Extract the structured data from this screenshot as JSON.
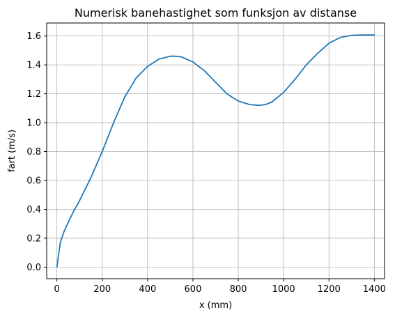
{
  "chart_data": {
    "type": "line",
    "title": "Numerisk banehastighet som funksjon av distanse",
    "xlabel": "x (mm)",
    "ylabel": "fart (m/s)",
    "xlim": [
      -45,
      1445
    ],
    "ylim": [
      -0.08,
      1.69
    ],
    "xticks": [
      0,
      200,
      400,
      600,
      800,
      1000,
      1200,
      1400
    ],
    "yticks": [
      0.0,
      0.2,
      0.4,
      0.6,
      0.8,
      1.0,
      1.2,
      1.4,
      1.6
    ],
    "xtick_labels": [
      "0",
      "200",
      "400",
      "600",
      "800",
      "1000",
      "1200",
      "1400"
    ],
    "ytick_labels": [
      "0.0",
      "0.2",
      "0.4",
      "0.6",
      "0.8",
      "1.0",
      "1.2",
      "1.4",
      "1.6"
    ],
    "grid": true,
    "legend": "none",
    "series": [
      {
        "color": "#1f77b4",
        "x": [
          0,
          15,
          30,
          50,
          75,
          100,
          150,
          200,
          250,
          300,
          350,
          400,
          450,
          500,
          520,
          550,
          600,
          650,
          700,
          750,
          800,
          850,
          890,
          920,
          950,
          1000,
          1050,
          1100,
          1150,
          1200,
          1250,
          1300,
          1350,
          1400
        ],
        "y": [
          0.0,
          0.17,
          0.24,
          0.31,
          0.39,
          0.46,
          0.62,
          0.8,
          1.0,
          1.18,
          1.31,
          1.39,
          1.44,
          1.46,
          1.46,
          1.455,
          1.42,
          1.36,
          1.28,
          1.2,
          1.15,
          1.125,
          1.12,
          1.125,
          1.145,
          1.21,
          1.3,
          1.4,
          1.48,
          1.55,
          1.59,
          1.605,
          1.607,
          1.607
        ]
      }
    ]
  }
}
